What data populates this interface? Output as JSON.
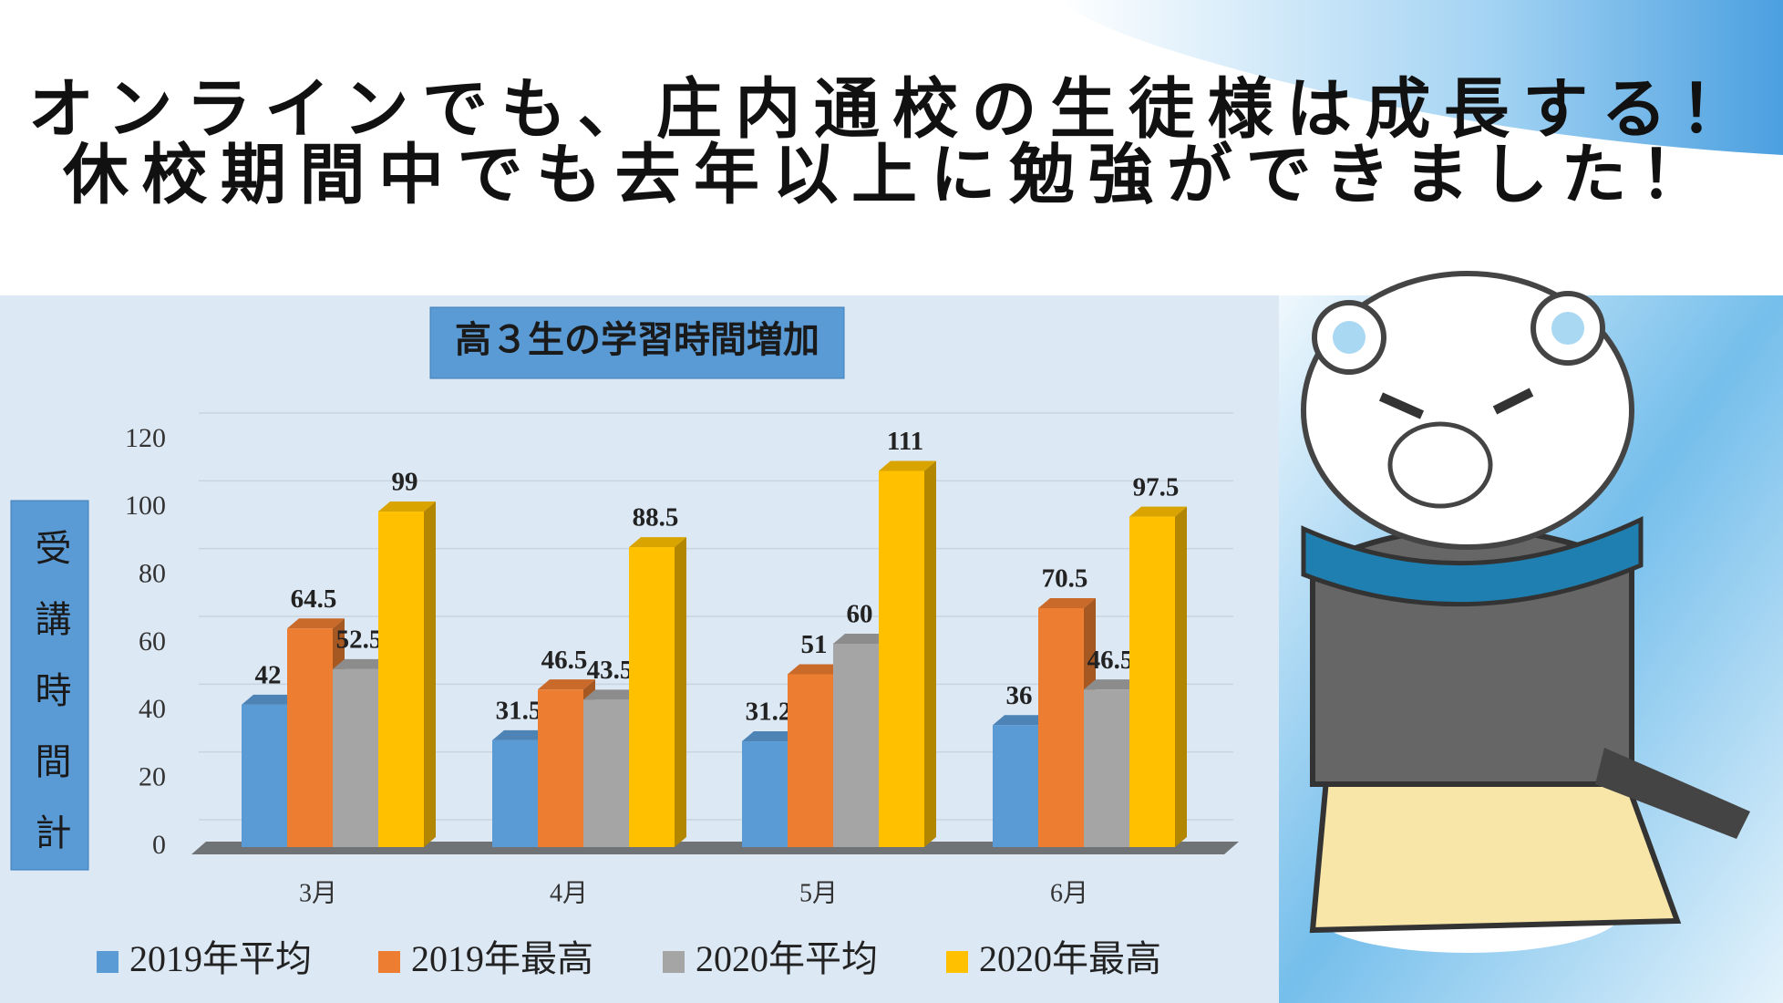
{
  "header": {
    "lines": [
      "オンラインでも、庄内通校の生徒様は成長する！",
      "休校期間中でも去年以上に勉強ができました！"
    ]
  },
  "chart_data": {
    "type": "bar",
    "title": "高３生の学習時間増加",
    "y_label": "受講時間計",
    "categories": [
      "3月",
      "4月",
      "5月",
      "6月"
    ],
    "series": [
      {
        "name": "2019年平均",
        "color": "#5b9bd5",
        "values": [
          42,
          31.5,
          31.2,
          36
        ]
      },
      {
        "name": "2019年最高",
        "color": "#ed7d31",
        "values": [
          64.5,
          46.5,
          51,
          70.5
        ]
      },
      {
        "name": "2020年平均",
        "color": "#a5a5a5",
        "values": [
          52.5,
          43.5,
          60,
          46.5
        ]
      },
      {
        "name": "2020年最高",
        "color": "#ffc000",
        "values": [
          99,
          88.5,
          111,
          97.5
        ]
      }
    ],
    "ylim": [
      0,
      120
    ],
    "yticks": [
      0,
      20,
      40,
      60,
      80,
      100,
      120
    ],
    "grid": true,
    "legend": "bottom"
  }
}
